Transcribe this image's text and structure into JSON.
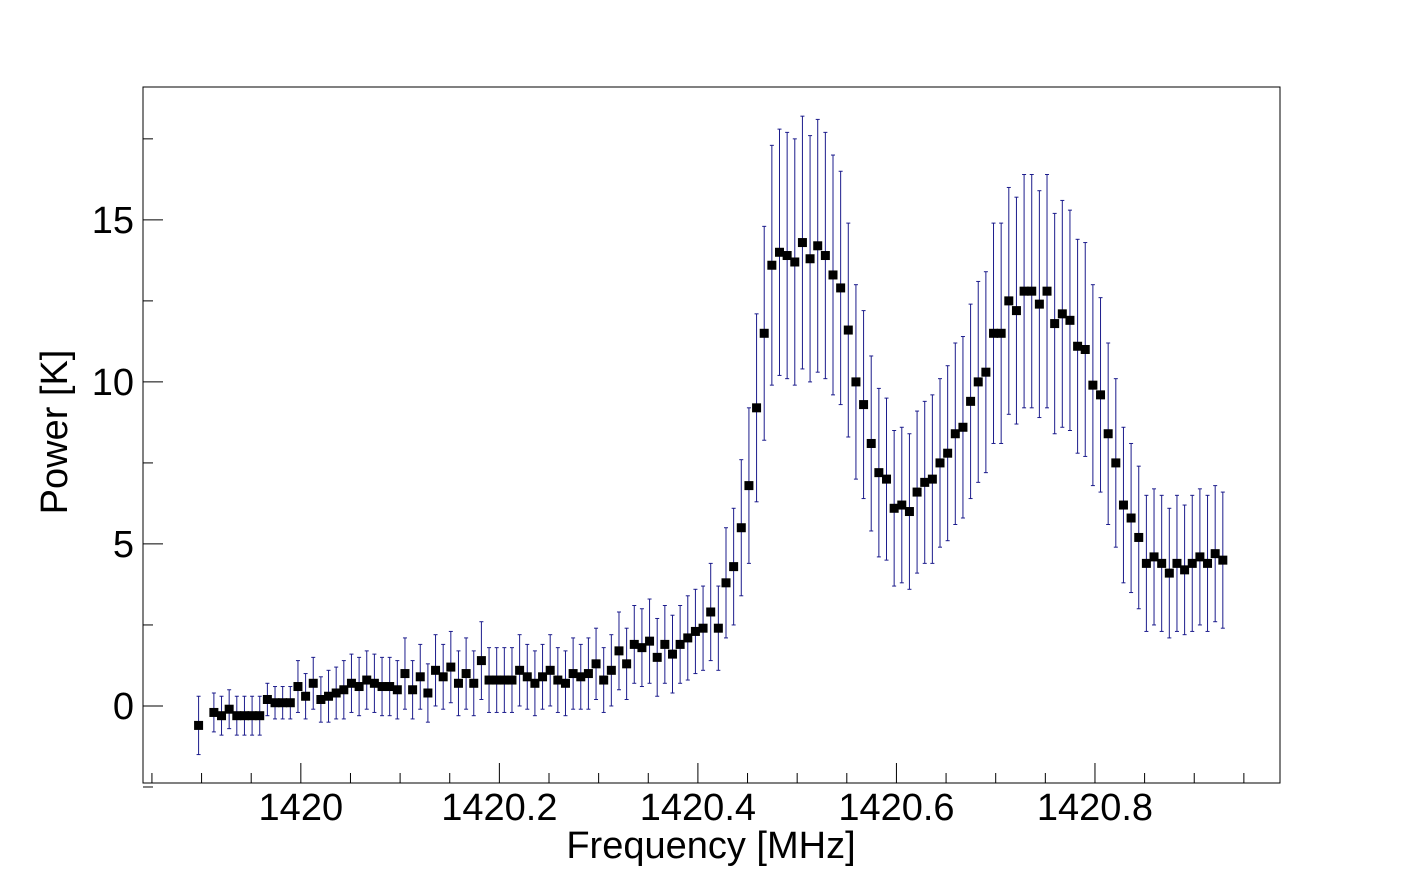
{
  "chart_data": {
    "type": "errorbar",
    "x_label": "Frequency [MHz]",
    "y_label": "Power [K]",
    "marker_color": "#000000",
    "error_color": "#1c1c8c",
    "xlim": [
      1419.841,
      1420.9864
    ],
    "ylim": [
      -2.377,
      19.1
    ],
    "xticks": [
      1420,
      1420.2,
      1420.4,
      1420.6,
      1420.8
    ],
    "xminorticks": [
      1419.85,
      1419.9,
      1419.95,
      1420.05,
      1420.1,
      1420.15,
      1420.25,
      1420.3,
      1420.35,
      1420.45,
      1420.5,
      1420.55,
      1420.65,
      1420.7,
      1420.75,
      1420.85,
      1420.9,
      1420.95
    ],
    "yticks": [
      0,
      5,
      10,
      15
    ],
    "yminorticks": [
      -2.5,
      2.5,
      7.5,
      12.5,
      17.5
    ],
    "x": [
      1419.897,
      1419.9047,
      1419.9124,
      1419.9201,
      1419.9278,
      1419.9355,
      1419.9432,
      1419.9509,
      1419.9586,
      1419.9663,
      1419.974,
      1419.9817,
      1419.9894,
      1419.9971,
      1420.0048,
      1420.0125,
      1420.0202,
      1420.0279,
      1420.0356,
      1420.0433,
      1420.051,
      1420.0587,
      1420.0664,
      1420.0741,
      1420.0818,
      1420.0895,
      1420.0972,
      1420.1049,
      1420.1126,
      1420.1203,
      1420.128,
      1420.1357,
      1420.1434,
      1420.1511,
      1420.1588,
      1420.1665,
      1420.1742,
      1420.1819,
      1420.1896,
      1420.1973,
      1420.205,
      1420.2127,
      1420.2204,
      1420.2281,
      1420.2358,
      1420.2435,
      1420.2512,
      1420.2589,
      1420.2666,
      1420.2743,
      1420.282,
      1420.2897,
      1420.2974,
      1420.3051,
      1420.3128,
      1420.3205,
      1420.3282,
      1420.3359,
      1420.3436,
      1420.3513,
      1420.359,
      1420.3667,
      1420.3744,
      1420.3821,
      1420.3898,
      1420.3975,
      1420.4052,
      1420.4129,
      1420.4206,
      1420.4283,
      1420.436,
      1420.4437,
      1420.4514,
      1420.4591,
      1420.4668,
      1420.4745,
      1420.4822,
      1420.4899,
      1420.4976,
      1420.5053,
      1420.513,
      1420.5207,
      1420.5284,
      1420.5361,
      1420.5438,
      1420.5515,
      1420.5592,
      1420.5669,
      1420.5746,
      1420.5823,
      1420.59,
      1420.5977,
      1420.6054,
      1420.6131,
      1420.6208,
      1420.6285,
      1420.6362,
      1420.6439,
      1420.6516,
      1420.6593,
      1420.667,
      1420.6747,
      1420.6824,
      1420.6901,
      1420.6978,
      1420.7055,
      1420.7132,
      1420.7209,
      1420.7286,
      1420.7363,
      1420.744,
      1420.7517,
      1420.7594,
      1420.7671,
      1420.7748,
      1420.7825,
      1420.7902,
      1420.7979,
      1420.8056,
      1420.8133,
      1420.821,
      1420.8287,
      1420.8364,
      1420.8441,
      1420.8518,
      1420.8595,
      1420.8672,
      1420.8749,
      1420.8826,
      1420.8903,
      1420.898,
      1420.9057,
      1420.9134,
      1420.9211,
      1420.9288
    ],
    "values": [
      -0.6,
      null,
      -0.2,
      -0.3,
      -0.1,
      -0.3,
      -0.3,
      -0.3,
      -0.3,
      0.2,
      0.1,
      0.1,
      0.1,
      0.6,
      0.3,
      0.7,
      0.2,
      0.3,
      0.4,
      0.5,
      0.7,
      0.6,
      0.8,
      0.7,
      0.6,
      0.6,
      0.5,
      1.0,
      0.5,
      0.9,
      0.4,
      1.1,
      0.9,
      1.2,
      0.7,
      1.0,
      0.7,
      1.4,
      0.8,
      0.8,
      0.8,
      0.8,
      1.1,
      0.9,
      0.7,
      0.9,
      1.1,
      0.8,
      0.7,
      1.0,
      0.9,
      1.0,
      1.3,
      0.8,
      1.1,
      1.7,
      1.3,
      1.9,
      1.8,
      2.0,
      1.5,
      1.9,
      1.6,
      1.9,
      2.1,
      2.3,
      2.4,
      2.9,
      2.4,
      3.8,
      4.3,
      5.5,
      6.8,
      9.2,
      11.5,
      13.6,
      14.0,
      13.9,
      13.7,
      14.3,
      13.8,
      14.2,
      13.9,
      13.3,
      12.9,
      11.6,
      10.0,
      9.3,
      8.1,
      7.2,
      7.0,
      6.1,
      6.2,
      6.0,
      6.6,
      6.9,
      7.0,
      7.5,
      7.8,
      8.4,
      8.6,
      9.4,
      10.0,
      10.3,
      11.5,
      11.5,
      12.5,
      12.2,
      12.8,
      12.8,
      12.4,
      12.8,
      11.8,
      12.1,
      11.9,
      11.1,
      11.0,
      9.9,
      9.6,
      8.4,
      7.5,
      6.2,
      5.8,
      5.2,
      4.4,
      4.6,
      4.4,
      4.1,
      4.4,
      4.2,
      4.4,
      4.6,
      4.4,
      4.7,
      4.5
    ],
    "errors": [
      0.9,
      null,
      0.6,
      0.6,
      0.6,
      0.6,
      0.6,
      0.6,
      0.6,
      0.5,
      0.5,
      0.5,
      0.5,
      0.8,
      0.7,
      0.8,
      0.7,
      0.8,
      0.8,
      0.9,
      0.9,
      0.9,
      0.9,
      0.9,
      0.9,
      0.9,
      0.9,
      1.1,
      0.9,
      1.0,
      0.9,
      1.1,
      1.0,
      1.1,
      1.0,
      1.1,
      1.0,
      1.2,
      1.0,
      1.0,
      1.0,
      1.0,
      1.1,
      1.0,
      1.0,
      1.0,
      1.1,
      1.0,
      1.0,
      1.1,
      1.0,
      1.1,
      1.1,
      1.0,
      1.1,
      1.2,
      1.1,
      1.2,
      1.2,
      1.3,
      1.2,
      1.2,
      1.2,
      1.2,
      1.3,
      1.3,
      1.3,
      1.5,
      1.3,
      1.7,
      1.8,
      2.1,
      2.4,
      2.9,
      3.3,
      3.7,
      3.8,
      3.8,
      3.8,
      3.9,
      3.8,
      3.9,
      3.8,
      3.7,
      3.6,
      3.3,
      3.0,
      2.9,
      2.7,
      2.6,
      2.5,
      2.4,
      2.4,
      2.4,
      2.5,
      2.5,
      2.6,
      2.6,
      2.7,
      2.8,
      2.8,
      3.0,
      3.1,
      3.1,
      3.4,
      3.4,
      3.5,
      3.5,
      3.6,
      3.6,
      3.5,
      3.6,
      3.4,
      3.5,
      3.4,
      3.3,
      3.3,
      3.1,
      3.0,
      2.8,
      2.6,
      2.4,
      2.3,
      2.2,
      2.1,
      2.1,
      2.1,
      2.0,
      2.1,
      2.0,
      2.1,
      2.1,
      2.1,
      2.1,
      2.1
    ]
  }
}
